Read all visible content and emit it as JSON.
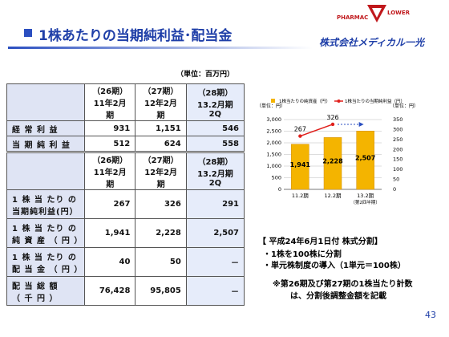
{
  "header": {
    "title": "1株あたりの当期純利益･配当金",
    "logo_left": "PHARMAC",
    "logo_right": "LOWER",
    "company": "株式会社メディカル一光"
  },
  "unit": "（単位：百万円）",
  "table1": {
    "headers": [
      "（26期）\n11年2月期",
      "（27期）\n12年2月期",
      "（28期）\n13.2月期2Q"
    ],
    "rows": [
      [
        "経 常 利 益",
        "931",
        "1,151",
        "546"
      ],
      [
        "当 期 純 利 益",
        "512",
        "624",
        "558"
      ]
    ]
  },
  "table2": {
    "headers": [
      "（26期）\n11年2月期",
      "（27期）\n12年2月期",
      "（28期）\n13.2月期2Q"
    ],
    "rows": [
      [
        "1 株 当 たり の\n当期純利益(円）",
        "267",
        "326",
        "291"
      ],
      [
        "1 株 当 たり の\n純 資 産 （ 円 ）",
        "1,941",
        "2,228",
        "2,507"
      ],
      [
        "1 株 当 たり の\n配 当 金 （ 円 ）",
        "40",
        "50",
        "－"
      ],
      [
        "配 当 総 額\n（ 千 円 ）",
        "76,428",
        "95,805",
        "－"
      ]
    ]
  },
  "chart_data": {
    "type": "bar",
    "ylabel": "（単位：円）",
    "y2label": "（単位：円）",
    "categories": [
      "11.2期",
      "12.2期",
      "13.2期"
    ],
    "category_note": "（第2四半期）",
    "ylim": [
      0,
      3000
    ],
    "yticks": [
      0,
      500,
      {
        "value": 1000,
        "label": "1,000"
      },
      {
        "value": 1500,
        "label": "1,500"
      },
      {
        "value": 2000,
        "label": "2,000"
      },
      {
        "value": 2500,
        "label": "2,500"
      },
      {
        "value": 3000,
        "label": "3,000"
      }
    ],
    "y2lim": [
      0,
      350
    ],
    "y2ticks": [
      0,
      50,
      100,
      150,
      200,
      250,
      300,
      350
    ],
    "series": [
      {
        "name": "1株当たりの純資産（円）",
        "type": "bar",
        "color": "#f4b400",
        "values": [
          1941,
          2228,
          2507
        ],
        "value_labels": [
          "1,941",
          "2,228",
          "2,507"
        ]
      },
      {
        "name": "1株当たりの当期純利益（円）",
        "type": "line",
        "axis": "y2",
        "color": "#e0201c",
        "values": [
          267,
          326,
          null
        ]
      }
    ]
  },
  "notes": {
    "box_title": "【 平成24年6月1日付 株式分割】",
    "items": [
      "・1株を100株に分割",
      "・単元株制度の導入（1単元＝100株）"
    ],
    "remark": [
      "※第26期及び第27期の1株当たり計数",
      "は、分割後調整金額を記載"
    ]
  },
  "page_number": "43"
}
